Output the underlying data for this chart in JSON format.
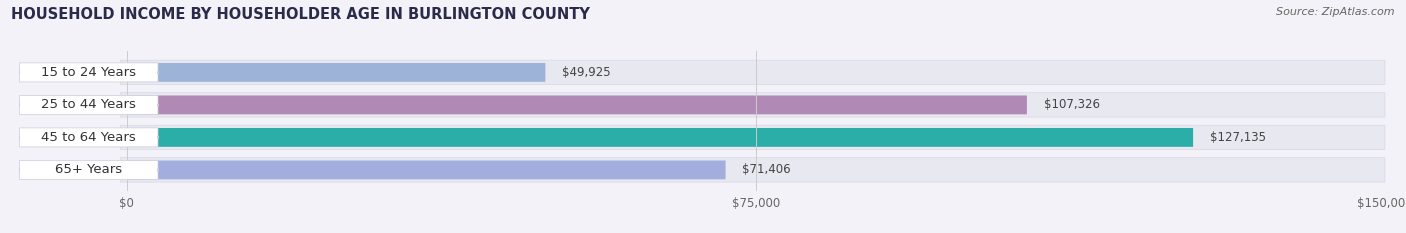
{
  "title": "HOUSEHOLD INCOME BY HOUSEHOLDER AGE IN BURLINGTON COUNTY",
  "source_text": "Source: ZipAtlas.com",
  "categories": [
    "15 to 24 Years",
    "25 to 44 Years",
    "45 to 64 Years",
    "65+ Years"
  ],
  "values": [
    49925,
    107326,
    127135,
    71406
  ],
  "bar_colors": [
    "#9db4d8",
    "#b08ab5",
    "#2baea8",
    "#a4aede"
  ],
  "value_label_colors": [
    "#444444",
    "#ffffff",
    "#ffffff",
    "#444444"
  ],
  "value_labels": [
    "$49,925",
    "$107,326",
    "$127,135",
    "$71,406"
  ],
  "xmax": 150000,
  "xticks": [
    0,
    75000,
    150000
  ],
  "xticklabels": [
    "$0",
    "$75,000",
    "$150,000"
  ],
  "background_color": "#f2f2f8",
  "bar_background_color": "#e8e8f0",
  "bar_bg_border_color": "#d8d8e8",
  "title_fontsize": 10.5,
  "source_fontsize": 8,
  "label_fontsize": 9.5,
  "value_fontsize": 8.5,
  "tick_fontsize": 8.5
}
